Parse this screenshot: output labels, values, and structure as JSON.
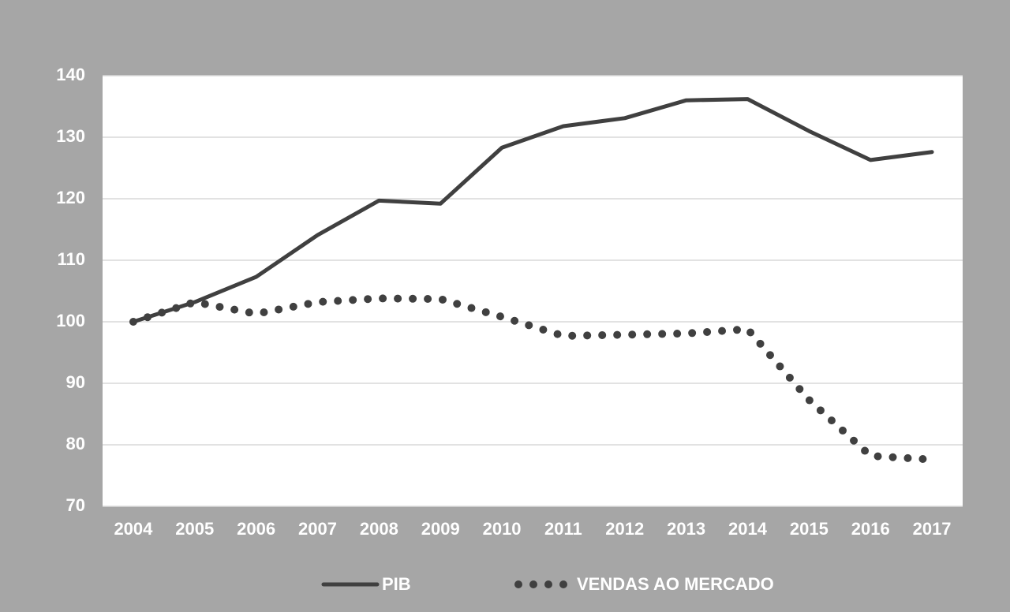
{
  "chart_data": {
    "type": "line",
    "categories": [
      "2004",
      "2005",
      "2006",
      "2007",
      "2008",
      "2009",
      "2010",
      "2011",
      "2012",
      "2013",
      "2014",
      "2015",
      "2016",
      "2017"
    ],
    "series": [
      {
        "name": "PIB",
        "color": "#404040",
        "style": "solid",
        "values": [
          100,
          103.2,
          107.3,
          114.1,
          119.7,
          119.2,
          128.3,
          131.8,
          133.1,
          136.0,
          136.2,
          131.0,
          126.3,
          127.6
        ]
      },
      {
        "name": "VENDAS AO MERCADO",
        "color": "#404040",
        "style": "dotted",
        "values": [
          100,
          103.2,
          101.3,
          103.2,
          103.8,
          103.7,
          100.8,
          97.7,
          97.9,
          98.1,
          98.8,
          87.3,
          78.2,
          77.6
        ]
      }
    ],
    "ylim": [
      70,
      140
    ],
    "yticks": [
      70,
      80,
      90,
      100,
      110,
      120,
      130,
      140
    ],
    "grid": true,
    "legend": "bottom"
  }
}
